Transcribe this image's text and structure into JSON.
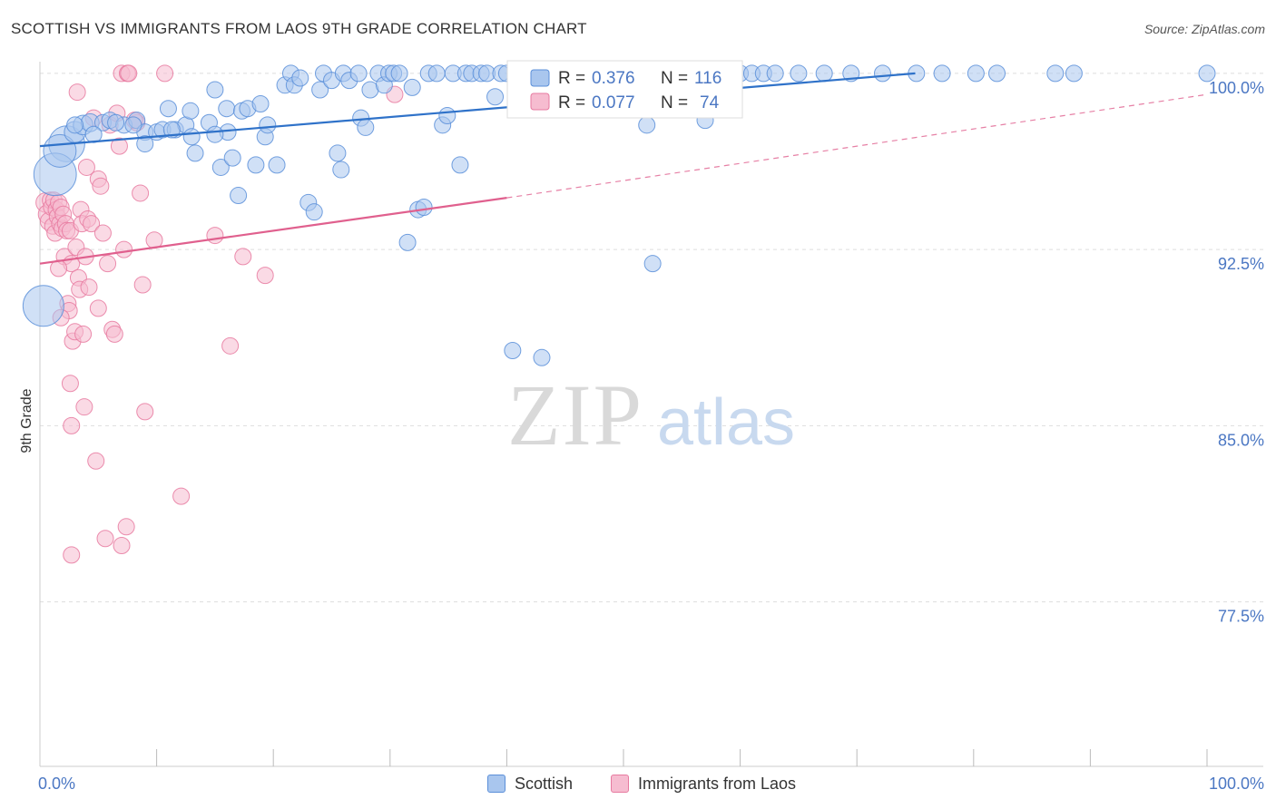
{
  "title": "SCOTTISH VS IMMIGRANTS FROM LAOS 9TH GRADE CORRELATION CHART",
  "source": "Source: ZipAtlas.com",
  "watermark": {
    "zip": "ZIP",
    "atlas": "atlas"
  },
  "colors": {
    "blue": "#5b8fd9",
    "blue_fill": "#a9c6ee",
    "blue_line": "#2f72c9",
    "pink": "#e77aa0",
    "pink_fill": "#f6bcd0",
    "pink_line": "#e0608e",
    "axis_text": "#4b77c3",
    "grid": "#dddddd"
  },
  "legend_box": {
    "rows": [
      {
        "r_label": "R =",
        "r_value": "0.376",
        "n_label": "N =",
        "n_value": "116",
        "series": "Scottish"
      },
      {
        "r_label": "R =",
        "r_value": "0.077",
        "n_label": "N =",
        "n_value": "74",
        "series": "Immigrants from Laos"
      }
    ]
  },
  "legend_bottom": [
    {
      "label": "Scottish",
      "series": "blue"
    },
    {
      "label": "Immigrants from Laos",
      "series": "pink"
    }
  ],
  "chart_data": {
    "type": "scatter",
    "title": "SCOTTISH VS IMMIGRANTS FROM LAOS 9TH GRADE CORRELATION CHART",
    "xlabel": "",
    "ylabel": "9th Grade",
    "xlim": [
      0,
      100
    ],
    "ylim": [
      70.5,
      101.5
    ],
    "x_tick_labels": [
      {
        "value": 0,
        "label": "0.0%"
      },
      {
        "value": 100,
        "label": "100.0%"
      }
    ],
    "y_tick_labels": [
      {
        "value": 100.0,
        "label": "100.0%"
      },
      {
        "value": 92.5,
        "label": "92.5%"
      },
      {
        "value": 85.0,
        "label": "85.0%"
      },
      {
        "value": 77.5,
        "label": "77.5%"
      }
    ],
    "x_minor_ticks": [
      10,
      20,
      30,
      40,
      50,
      60,
      70,
      80,
      90,
      100
    ],
    "grid": true,
    "legend": "top-center",
    "series": [
      {
        "name": "Scottish",
        "color": "#5b8fd9",
        "r": 0.376,
        "n": 116,
        "trend": {
          "x": [
            0,
            75
          ],
          "y": [
            96.9,
            100.0
          ],
          "dashed_to": null
        },
        "points": [
          [
            2.3,
            97.0,
            2.2
          ],
          [
            1.3,
            95.7,
            2.6
          ],
          [
            1.7,
            96.7,
            2.0
          ],
          [
            0.3,
            90.1,
            2.5
          ],
          [
            3.0,
            97.5,
            1.3
          ],
          [
            3.7,
            97.8,
            1.2
          ],
          [
            4.3,
            97.9,
            1.1
          ],
          [
            5.4,
            97.9,
            1.0
          ],
          [
            6.0,
            98.0,
            1.0
          ],
          [
            7.2,
            97.8,
            1.0
          ],
          [
            8.3,
            98.0,
            1.0
          ],
          [
            9.0,
            97.5,
            1.0
          ],
          [
            9.0,
            97.0,
            1.0
          ],
          [
            10.0,
            97.5,
            1.0
          ],
          [
            10.5,
            97.6,
            1.0
          ],
          [
            11.0,
            98.5,
            1.0
          ],
          [
            11.6,
            97.6,
            1.0
          ],
          [
            12.5,
            97.8,
            1.0
          ],
          [
            12.9,
            98.4,
            1.0
          ],
          [
            13.0,
            97.3,
            1.0
          ],
          [
            13.3,
            96.6,
            1.0
          ],
          [
            14.5,
            97.9,
            1.0
          ],
          [
            15.0,
            99.3,
            1.0
          ],
          [
            15.5,
            96.0,
            1.0
          ],
          [
            16.0,
            98.5,
            1.0
          ],
          [
            16.1,
            97.5,
            1.0
          ],
          [
            16.5,
            96.4,
            1.0
          ],
          [
            17.0,
            94.8,
            1.0
          ],
          [
            17.3,
            98.4,
            1.0
          ],
          [
            17.8,
            98.5,
            1.0
          ],
          [
            18.5,
            96.1,
            1.0
          ],
          [
            18.9,
            98.7,
            1.0
          ],
          [
            19.3,
            97.3,
            1.0
          ],
          [
            19.5,
            97.8,
            1.0
          ],
          [
            20.3,
            96.1,
            1.0
          ],
          [
            21.0,
            99.5,
            1.0
          ],
          [
            21.5,
            100.0,
            1.0
          ],
          [
            21.8,
            99.5,
            1.0
          ],
          [
            22.3,
            99.8,
            1.0
          ],
          [
            23.0,
            94.5,
            1.0
          ],
          [
            23.5,
            94.1,
            1.0
          ],
          [
            24.0,
            99.3,
            1.0
          ],
          [
            24.3,
            100.0,
            1.0
          ],
          [
            25.0,
            99.7,
            1.0
          ],
          [
            25.5,
            96.6,
            1.0
          ],
          [
            25.8,
            95.9,
            1.0
          ],
          [
            26.0,
            100.0,
            1.0
          ],
          [
            26.5,
            99.7,
            1.0
          ],
          [
            27.3,
            100.0,
            1.0
          ],
          [
            27.5,
            98.1,
            1.0
          ],
          [
            27.9,
            97.7,
            1.0
          ],
          [
            28.3,
            99.3,
            1.0
          ],
          [
            29.0,
            100.0,
            1.0
          ],
          [
            29.5,
            99.5,
            1.0
          ],
          [
            29.9,
            100.0,
            1.0
          ],
          [
            30.3,
            100.0,
            1.0
          ],
          [
            30.8,
            100.0,
            1.0
          ],
          [
            31.5,
            92.8,
            1.0
          ],
          [
            31.9,
            99.4,
            1.0
          ],
          [
            32.4,
            94.2,
            1.0
          ],
          [
            32.9,
            94.3,
            1.0
          ],
          [
            33.3,
            100.0,
            1.0
          ],
          [
            34.0,
            100.0,
            1.0
          ],
          [
            34.5,
            97.8,
            1.0
          ],
          [
            34.9,
            98.2,
            1.0
          ],
          [
            35.4,
            100.0,
            1.0
          ],
          [
            36.0,
            96.1,
            1.0
          ],
          [
            36.5,
            100.0,
            1.0
          ],
          [
            37.0,
            100.0,
            1.0
          ],
          [
            37.8,
            100.0,
            1.0
          ],
          [
            38.3,
            100.0,
            1.0
          ],
          [
            39.0,
            99.0,
            1.0
          ],
          [
            39.5,
            100.0,
            1.0
          ],
          [
            40.0,
            100.0,
            1.0
          ],
          [
            40.5,
            88.2,
            1.0
          ],
          [
            41.3,
            100.0,
            1.0
          ],
          [
            42.0,
            100.0,
            1.0
          ],
          [
            43.0,
            87.9,
            1.0
          ],
          [
            44.0,
            100.0,
            1.0
          ],
          [
            45.0,
            100.0,
            1.0
          ],
          [
            46.0,
            100.0,
            1.0
          ],
          [
            47.0,
            100.0,
            1.0
          ],
          [
            48.0,
            100.0,
            1.0
          ],
          [
            49.0,
            100.0,
            1.0
          ],
          [
            50.0,
            100.0,
            1.0
          ],
          [
            51.0,
            100.0,
            1.0
          ],
          [
            52.0,
            97.8,
            1.0
          ],
          [
            52.5,
            91.9,
            1.0
          ],
          [
            53.0,
            100.0,
            1.0
          ],
          [
            54.0,
            100.0,
            1.0
          ],
          [
            55.0,
            100.0,
            1.0
          ],
          [
            56.0,
            100.0,
            1.0
          ],
          [
            57.0,
            98.0,
            1.0
          ],
          [
            58.0,
            100.0,
            1.0
          ],
          [
            59.0,
            100.0,
            1.0
          ],
          [
            60.0,
            100.0,
            1.0
          ],
          [
            61.0,
            100.0,
            1.0
          ],
          [
            62.0,
            100.0,
            1.0
          ],
          [
            63.0,
            100.0,
            1.0
          ],
          [
            65.0,
            100.0,
            1.0
          ],
          [
            67.2,
            100.0,
            1.0
          ],
          [
            69.5,
            100.0,
            1.0
          ],
          [
            72.2,
            100.0,
            1.0
          ],
          [
            75.1,
            100.0,
            1.0
          ],
          [
            77.3,
            100.0,
            1.0
          ],
          [
            80.2,
            100.0,
            1.0
          ],
          [
            82.0,
            100.0,
            1.0
          ],
          [
            87.0,
            100.0,
            1.0
          ],
          [
            88.6,
            100.0,
            1.0
          ],
          [
            100.0,
            100.0,
            1.0
          ],
          [
            15.0,
            97.4,
            1.0
          ],
          [
            4.6,
            97.4,
            1.0
          ],
          [
            6.5,
            97.9,
            1.0
          ],
          [
            8.0,
            97.8,
            1.0
          ],
          [
            11.3,
            97.6,
            1.0
          ],
          [
            3.0,
            97.8,
            1.0
          ]
        ]
      },
      {
        "name": "Immigrants from Laos",
        "color": "#e77aa0",
        "r": 0.077,
        "n": 74,
        "trend": {
          "x": [
            0,
            40
          ],
          "y": [
            91.9,
            94.7
          ],
          "dashed_to": [
            100,
            99.1
          ]
        },
        "points": [
          [
            0.5,
            94.5,
            1.2
          ],
          [
            0.7,
            94.0,
            1.2
          ],
          [
            0.8,
            93.7,
            1.1
          ],
          [
            0.9,
            94.6,
            1.0
          ],
          [
            1.0,
            94.3,
            1.0
          ],
          [
            1.1,
            93.5,
            1.0
          ],
          [
            1.2,
            94.6,
            1.0
          ],
          [
            1.3,
            93.2,
            1.0
          ],
          [
            1.4,
            94.2,
            1.0
          ],
          [
            1.5,
            93.9,
            1.0
          ],
          [
            1.6,
            94.5,
            1.0
          ],
          [
            1.7,
            93.6,
            1.0
          ],
          [
            1.8,
            94.3,
            1.0
          ],
          [
            1.9,
            93.4,
            1.0
          ],
          [
            2.0,
            94.0,
            1.0
          ],
          [
            2.1,
            92.2,
            1.0
          ],
          [
            2.2,
            93.6,
            1.0
          ],
          [
            2.3,
            93.3,
            1.0
          ],
          [
            2.4,
            90.2,
            1.0
          ],
          [
            2.5,
            89.9,
            1.0
          ],
          [
            2.6,
            93.3,
            1.0
          ],
          [
            2.7,
            91.9,
            1.0
          ],
          [
            1.6,
            91.7,
            1.0
          ],
          [
            1.8,
            89.6,
            1.0
          ],
          [
            2.6,
            86.8,
            1.0
          ],
          [
            2.7,
            85.0,
            1.0
          ],
          [
            2.8,
            88.6,
            1.0
          ],
          [
            3.0,
            89.0,
            1.0
          ],
          [
            3.1,
            92.6,
            1.0
          ],
          [
            3.3,
            91.3,
            1.0
          ],
          [
            3.4,
            90.8,
            1.0
          ],
          [
            3.5,
            94.2,
            1.0
          ],
          [
            3.6,
            93.6,
            1.0
          ],
          [
            3.7,
            88.9,
            1.0
          ],
          [
            3.8,
            85.8,
            1.0
          ],
          [
            3.9,
            92.2,
            1.0
          ],
          [
            4.0,
            96.0,
            1.0
          ],
          [
            4.1,
            93.8,
            1.0
          ],
          [
            4.2,
            90.9,
            1.0
          ],
          [
            4.4,
            93.6,
            1.0
          ],
          [
            4.6,
            98.1,
            1.0
          ],
          [
            4.8,
            83.5,
            1.0
          ],
          [
            5.0,
            95.5,
            1.0
          ],
          [
            5.2,
            95.2,
            1.0
          ],
          [
            5.4,
            93.2,
            1.0
          ],
          [
            5.6,
            80.2,
            1.0
          ],
          [
            5.8,
            91.9,
            1.0
          ],
          [
            6.0,
            97.8,
            1.0
          ],
          [
            6.2,
            89.1,
            1.0
          ],
          [
            6.4,
            88.9,
            1.0
          ],
          [
            6.6,
            98.3,
            1.0
          ],
          [
            6.8,
            96.9,
            1.0
          ],
          [
            7.0,
            79.9,
            1.0
          ],
          [
            7.2,
            92.5,
            1.0
          ],
          [
            7.4,
            80.7,
            1.0
          ],
          [
            7.0,
            100.0,
            1.0
          ],
          [
            7.5,
            100.0,
            1.0
          ],
          [
            7.6,
            100.0,
            1.0
          ],
          [
            8.3,
            97.9,
            1.0
          ],
          [
            8.6,
            94.9,
            1.0
          ],
          [
            8.8,
            91.0,
            1.0
          ],
          [
            9.0,
            85.6,
            1.0
          ],
          [
            9.8,
            92.9,
            1.0
          ],
          [
            10.7,
            100.0,
            1.0
          ],
          [
            12.1,
            82.0,
            1.0
          ],
          [
            15.0,
            93.1,
            1.0
          ],
          [
            16.3,
            88.4,
            1.0
          ],
          [
            17.4,
            92.2,
            1.0
          ],
          [
            19.3,
            91.4,
            1.0
          ],
          [
            3.2,
            99.2,
            1.0
          ],
          [
            2.7,
            79.5,
            1.0
          ],
          [
            5.0,
            90.0,
            1.0
          ],
          [
            8.1,
            98.0,
            1.0
          ],
          [
            30.4,
            99.1,
            1.0
          ]
        ]
      }
    ]
  }
}
